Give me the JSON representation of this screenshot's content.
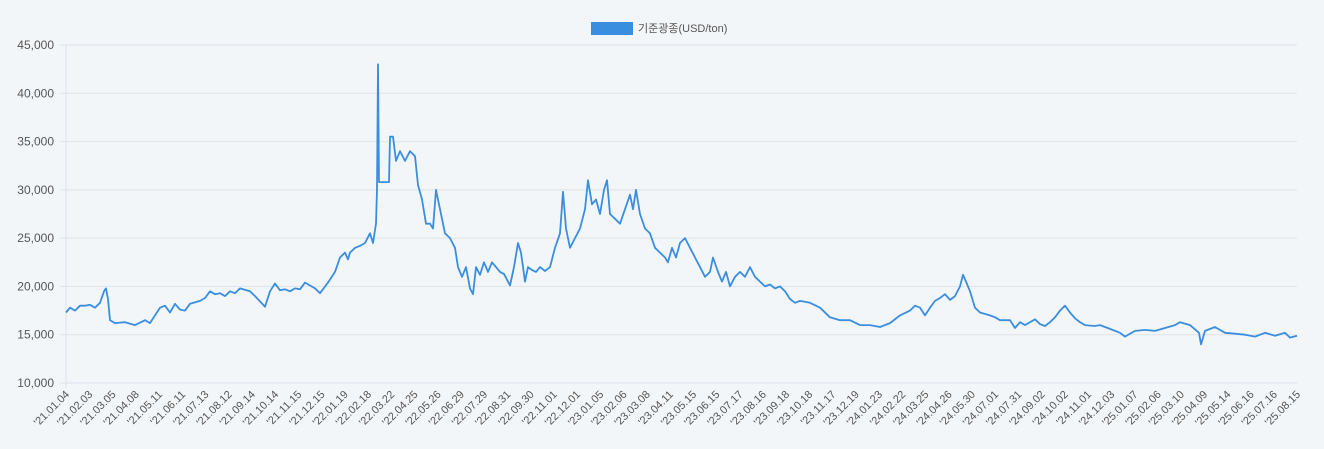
{
  "chart_data": {
    "type": "line",
    "title": "",
    "xlabel": "",
    "ylabel": "",
    "legend": {
      "label": "기준광종(USD/ton)",
      "placement": "top-center"
    },
    "series_color": "#3a8ee0",
    "grid": true,
    "ylim": [
      10000,
      45000
    ],
    "y_ticks": [
      "10,000",
      "15,000",
      "20,000",
      "25,000",
      "30,000",
      "35,000",
      "40,000",
      "45,000"
    ],
    "y_tick_values": [
      10000,
      15000,
      20000,
      25000,
      30000,
      35000,
      40000,
      45000
    ],
    "x_tick_labels": [
      "'21.01.04",
      "'21.02.03",
      "'21.03.05",
      "'21.04.08",
      "'21.05.11",
      "'21.06.11",
      "'21.07.13",
      "'21.08.12",
      "'21.09.14",
      "'21.10.14",
      "'21.11.15",
      "'21.12.15",
      "'22.01.19",
      "'22.02.18",
      "'22.03.22",
      "'22.04.25",
      "'22.05.26",
      "'22.06.29",
      "'22.07.29",
      "'22.08.31",
      "'22.09.30",
      "'22.11.01",
      "'22.12.01",
      "'23.01.05",
      "'23.02.06",
      "'23.03.08",
      "'23.04.11",
      "'23.05.15",
      "'23.06.15",
      "'23.07.17",
      "'23.08.16",
      "'23.09.18",
      "'23.10.18",
      "'23.11.17",
      "'23.12.19",
      "'24.01.23",
      "'24.02.22",
      "'24.03.25",
      "'24.04.26",
      "'24.05.30",
      "'24.07.01",
      "'24.07.31",
      "'24.09.02",
      "'24.10.02",
      "'24.11.01",
      "'24.12.03",
      "'25.01.07",
      "'25.02.06",
      "'25.03.10",
      "'25.04.09",
      "'25.05.14",
      "'25.06.16",
      "'25.07.16",
      "'25.08.15"
    ],
    "x_range": [
      0,
      1231
    ],
    "points": [
      [
        0,
        17300
      ],
      [
        4,
        17800
      ],
      [
        9,
        17500
      ],
      [
        14,
        18000
      ],
      [
        19,
        18000
      ],
      [
        24,
        18100
      ],
      [
        29,
        17800
      ],
      [
        34,
        18300
      ],
      [
        38,
        19500
      ],
      [
        40,
        19800
      ],
      [
        42,
        18700
      ],
      [
        44,
        16500
      ],
      [
        49,
        16200
      ],
      [
        59,
        16300
      ],
      [
        69,
        16000
      ],
      [
        79,
        16500
      ],
      [
        84,
        16200
      ],
      [
        89,
        17000
      ],
      [
        94,
        17800
      ],
      [
        99,
        18000
      ],
      [
        104,
        17300
      ],
      [
        109,
        18200
      ],
      [
        114,
        17600
      ],
      [
        119,
        17500
      ],
      [
        124,
        18200
      ],
      [
        134,
        18500
      ],
      [
        139,
        18800
      ],
      [
        144,
        19500
      ],
      [
        149,
        19200
      ],
      [
        154,
        19300
      ],
      [
        159,
        19000
      ],
      [
        164,
        19500
      ],
      [
        169,
        19300
      ],
      [
        174,
        19800
      ],
      [
        184,
        19500
      ],
      [
        189,
        19000
      ],
      [
        199,
        17900
      ],
      [
        204,
        19500
      ],
      [
        209,
        20300
      ],
      [
        214,
        19600
      ],
      [
        219,
        19700
      ],
      [
        224,
        19500
      ],
      [
        229,
        19800
      ],
      [
        234,
        19700
      ],
      [
        239,
        20400
      ],
      [
        244,
        20100
      ],
      [
        249,
        19800
      ],
      [
        254,
        19300
      ],
      [
        262,
        20400
      ],
      [
        269,
        21500
      ],
      [
        274,
        23000
      ],
      [
        279,
        23500
      ],
      [
        282,
        22800
      ],
      [
        284,
        23500
      ],
      [
        289,
        24000
      ],
      [
        294,
        24200
      ],
      [
        299,
        24500
      ],
      [
        304,
        25500
      ],
      [
        307,
        24500
      ],
      [
        310,
        26500
      ],
      [
        311,
        30000
      ],
      [
        312,
        43000
      ],
      [
        313,
        30800
      ],
      [
        323,
        30800
      ],
      [
        324,
        35500
      ],
      [
        327,
        35500
      ],
      [
        330,
        33000
      ],
      [
        334,
        34000
      ],
      [
        339,
        33000
      ],
      [
        344,
        34000
      ],
      [
        349,
        33500
      ],
      [
        352,
        30500
      ],
      [
        356,
        29000
      ],
      [
        360,
        26500
      ],
      [
        364,
        26500
      ],
      [
        367,
        26000
      ],
      [
        370,
        30000
      ],
      [
        374,
        28000
      ],
      [
        379,
        25500
      ],
      [
        384,
        25000
      ],
      [
        389,
        24000
      ],
      [
        392,
        22000
      ],
      [
        396,
        21000
      ],
      [
        400,
        22000
      ],
      [
        404,
        19800
      ],
      [
        407,
        19200
      ],
      [
        410,
        22000
      ],
      [
        414,
        21200
      ],
      [
        418,
        22500
      ],
      [
        422,
        21500
      ],
      [
        426,
        22500
      ],
      [
        430,
        22000
      ],
      [
        434,
        21500
      ],
      [
        438,
        21300
      ],
      [
        442,
        20500
      ],
      [
        444,
        20100
      ],
      [
        448,
        22000
      ],
      [
        452,
        24500
      ],
      [
        455,
        23500
      ],
      [
        459,
        20500
      ],
      [
        462,
        22000
      ],
      [
        466,
        21700
      ],
      [
        470,
        21500
      ],
      [
        474,
        22000
      ],
      [
        479,
        21600
      ],
      [
        484,
        22000
      ],
      [
        489,
        24000
      ],
      [
        494,
        25500
      ],
      [
        497,
        29800
      ],
      [
        500,
        26000
      ],
      [
        504,
        24000
      ],
      [
        509,
        25000
      ],
      [
        514,
        26000
      ],
      [
        519,
        28000
      ],
      [
        522,
        31000
      ],
      [
        526,
        28500
      ],
      [
        530,
        29000
      ],
      [
        534,
        27500
      ],
      [
        538,
        30000
      ],
      [
        541,
        31000
      ],
      [
        544,
        27500
      ],
      [
        549,
        27000
      ],
      [
        554,
        26500
      ],
      [
        559,
        28000
      ],
      [
        564,
        29500
      ],
      [
        567,
        28000
      ],
      [
        570,
        30000
      ],
      [
        574,
        27500
      ],
      [
        579,
        26000
      ],
      [
        584,
        25500
      ],
      [
        589,
        24000
      ],
      [
        594,
        23500
      ],
      [
        599,
        23000
      ],
      [
        602,
        22500
      ],
      [
        606,
        24000
      ],
      [
        610,
        23000
      ],
      [
        614,
        24500
      ],
      [
        619,
        25000
      ],
      [
        624,
        24000
      ],
      [
        629,
        23000
      ],
      [
        634,
        22000
      ],
      [
        639,
        21000
      ],
      [
        644,
        21500
      ],
      [
        647,
        23000
      ],
      [
        652,
        21500
      ],
      [
        656,
        20500
      ],
      [
        660,
        21500
      ],
      [
        664,
        20000
      ],
      [
        669,
        21000
      ],
      [
        674,
        21500
      ],
      [
        679,
        21000
      ],
      [
        684,
        22000
      ],
      [
        689,
        21000
      ],
      [
        694,
        20500
      ],
      [
        699,
        20000
      ],
      [
        704,
        20200
      ],
      [
        709,
        19800
      ],
      [
        714,
        20000
      ],
      [
        719,
        19500
      ],
      [
        724,
        18700
      ],
      [
        729,
        18300
      ],
      [
        734,
        18500
      ],
      [
        744,
        18300
      ],
      [
        754,
        17800
      ],
      [
        764,
        16800
      ],
      [
        774,
        16500
      ],
      [
        784,
        16500
      ],
      [
        794,
        16000
      ],
      [
        804,
        16000
      ],
      [
        814,
        15800
      ],
      [
        824,
        16200
      ],
      [
        834,
        17000
      ],
      [
        844,
        17500
      ],
      [
        849,
        18000
      ],
      [
        854,
        17800
      ],
      [
        859,
        17000
      ],
      [
        864,
        17800
      ],
      [
        869,
        18500
      ],
      [
        874,
        18800
      ],
      [
        879,
        19200
      ],
      [
        884,
        18600
      ],
      [
        889,
        19000
      ],
      [
        894,
        20000
      ],
      [
        897,
        21200
      ],
      [
        900,
        20500
      ],
      [
        904,
        19500
      ],
      [
        909,
        17800
      ],
      [
        914,
        17300
      ],
      [
        924,
        17000
      ],
      [
        929,
        16800
      ],
      [
        934,
        16500
      ],
      [
        944,
        16500
      ],
      [
        949,
        15700
      ],
      [
        954,
        16300
      ],
      [
        959,
        16000
      ],
      [
        969,
        16600
      ],
      [
        974,
        16100
      ],
      [
        979,
        15900
      ],
      [
        984,
        16300
      ],
      [
        989,
        16800
      ],
      [
        994,
        17500
      ],
      [
        999,
        18000
      ],
      [
        1004,
        17300
      ],
      [
        1009,
        16700
      ],
      [
        1014,
        16300
      ],
      [
        1019,
        16000
      ],
      [
        1029,
        15900
      ],
      [
        1034,
        16000
      ],
      [
        1044,
        15600
      ],
      [
        1054,
        15200
      ],
      [
        1059,
        14800
      ],
      [
        1069,
        15400
      ],
      [
        1079,
        15500
      ],
      [
        1089,
        15400
      ],
      [
        1099,
        15700
      ],
      [
        1109,
        16000
      ],
      [
        1114,
        16300
      ],
      [
        1124,
        16000
      ],
      [
        1133,
        15200
      ],
      [
        1135,
        14000
      ],
      [
        1139,
        15400
      ],
      [
        1149,
        15800
      ],
      [
        1159,
        15200
      ],
      [
        1169,
        15100
      ],
      [
        1179,
        15000
      ],
      [
        1189,
        14800
      ],
      [
        1199,
        15200
      ],
      [
        1209,
        14900
      ],
      [
        1219,
        15200
      ],
      [
        1224,
        14700
      ],
      [
        1231,
        14900
      ]
    ]
  }
}
